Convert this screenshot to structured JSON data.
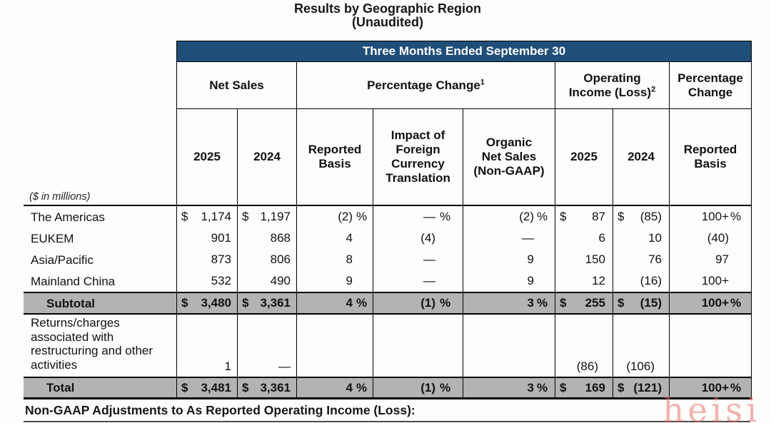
{
  "title": {
    "line1": "Results by Geographic Region",
    "line2": "(Unaudited)"
  },
  "banner": "Three Months Ended September 30",
  "colors": {
    "banner_bg": "#1F4E79",
    "banner_text": "#FFFFFF",
    "gray_row_bg": "#B3B3B3",
    "watermark": "rgba(233,117,112,0.55)"
  },
  "table": {
    "groups": [
      {
        "label": "Net Sales",
        "sup": ""
      },
      {
        "label": "Percentage Change",
        "sup": "1"
      },
      {
        "label": "Operating\nIncome (Loss)",
        "sup": "2"
      },
      {
        "label": "Percentage\nChange",
        "sup": ""
      }
    ],
    "subheaders": [
      "2025",
      "2024",
      "Reported\nBasis",
      "Impact of\nForeign\nCurrency\nTranslation",
      "Organic\nNet Sales\n(Non-GAAP)",
      "2025",
      "2024",
      "Reported\nBasis"
    ],
    "units_note": "($ in millions)",
    "rows": [
      {
        "label": "The Americas",
        "type": "plain",
        "cells": [
          {
            "pre": "$",
            "val": "1,174"
          },
          {
            "pre": "$",
            "val": "1,197"
          },
          {
            "val": "(2)",
            "suf": "%"
          },
          {
            "val": "—",
            "suf": "%"
          },
          {
            "val": "(2)",
            "suf": "%"
          },
          {
            "pre": "$",
            "val": "87"
          },
          {
            "pre": "$",
            "val": "(85)"
          },
          {
            "val": "100+",
            "suf": "%"
          }
        ]
      },
      {
        "label": "EUKEM",
        "type": "plain",
        "cells": [
          {
            "val": "901"
          },
          {
            "val": "868"
          },
          {
            "val": "4"
          },
          {
            "val": "(4)"
          },
          {
            "val": "—"
          },
          {
            "val": "6"
          },
          {
            "val": "10"
          },
          {
            "val": "(40)"
          }
        ]
      },
      {
        "label": "Asia/Pacific",
        "type": "plain",
        "cells": [
          {
            "val": "873"
          },
          {
            "val": "806"
          },
          {
            "val": "8"
          },
          {
            "val": "—"
          },
          {
            "val": "9"
          },
          {
            "val": "150"
          },
          {
            "val": "76"
          },
          {
            "val": "97"
          }
        ]
      },
      {
        "label": "Mainland China",
        "type": "plain",
        "cells": [
          {
            "val": "532"
          },
          {
            "val": "490"
          },
          {
            "val": "9"
          },
          {
            "val": "—"
          },
          {
            "val": "9"
          },
          {
            "val": "12"
          },
          {
            "val": "(16)"
          },
          {
            "val": "100+"
          }
        ]
      },
      {
        "label": "Subtotal",
        "type": "subtotal",
        "cells": [
          {
            "pre": "$",
            "val": "3,480"
          },
          {
            "pre": "$",
            "val": "3,361"
          },
          {
            "val": "4",
            "suf": "%"
          },
          {
            "val": "(1)",
            "suf": "%"
          },
          {
            "val": "3",
            "suf": "%"
          },
          {
            "pre": "$",
            "val": "255"
          },
          {
            "pre": "$",
            "val": "(15)"
          },
          {
            "val": "100+",
            "suf": "%"
          }
        ]
      },
      {
        "label": "Returns/charges associated with restructuring and other activities",
        "type": "tall",
        "cells": [
          {
            "val": "1"
          },
          {
            "val": "—"
          },
          {},
          {},
          {},
          {
            "val": "(86)"
          },
          {
            "val": "(106)"
          },
          {}
        ]
      },
      {
        "label": "Total",
        "type": "total",
        "cells": [
          {
            "pre": "$",
            "val": "3,481"
          },
          {
            "pre": "$",
            "val": "3,361"
          },
          {
            "val": "4",
            "suf": "%"
          },
          {
            "val": "(1)",
            "suf": "%"
          },
          {
            "val": "3",
            "suf": "%"
          },
          {
            "pre": "$",
            "val": "169"
          },
          {
            "pre": "$",
            "val": "(121)"
          },
          {
            "val": "100+",
            "suf": "%"
          }
        ]
      }
    ]
  },
  "footer": "Non-GAAP Adjustments to As Reported Operating Income (Loss):",
  "watermark": "heisi"
}
